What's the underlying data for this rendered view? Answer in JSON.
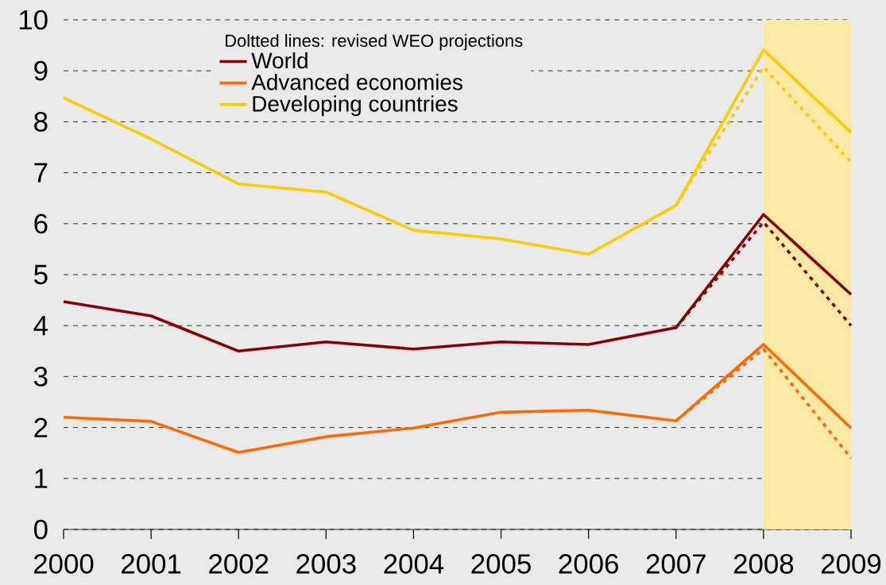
{
  "chart_data": {
    "type": "line",
    "x": [
      2000,
      2001,
      2002,
      2003,
      2004,
      2005,
      2006,
      2007,
      2008,
      2009
    ],
    "series": [
      {
        "name": "World",
        "color": "#8b0000",
        "values": [
          4.47,
          4.19,
          3.5,
          3.68,
          3.54,
          3.68,
          3.63,
          3.96,
          6.18,
          4.61
        ]
      },
      {
        "name": "Advanced economies",
        "color": "#ff6a00",
        "values": [
          2.2,
          2.12,
          1.51,
          1.82,
          1.99,
          2.3,
          2.34,
          2.13,
          3.63,
          1.99
        ]
      },
      {
        "name": "Developing countries",
        "color": "#ffcc00",
        "values": [
          8.47,
          7.66,
          6.78,
          6.62,
          5.87,
          5.7,
          5.4,
          6.36,
          9.41,
          7.79
        ]
      },
      {
        "color": "#8b0000",
        "line_style": "dotted",
        "x": [
          2007,
          2008,
          2009
        ],
        "values": [
          3.96,
          6.03,
          4.0
        ]
      },
      {
        "color": "#ff6a00",
        "line_style": "dotted",
        "x": [
          2007,
          2008,
          2009
        ],
        "values": [
          2.13,
          3.54,
          1.4
        ]
      },
      {
        "color": "#ffcc00",
        "line_style": "dotted",
        "x": [
          2007,
          2008,
          2009
        ],
        "values": [
          6.36,
          9.07,
          7.21
        ]
      }
    ],
    "legend_title": "Doltted lines: revised WEO projections",
    "legend": "top",
    "bands": [
      {
        "axis": "x",
        "from": 2008,
        "to": 2009,
        "color": "#fbe9a6"
      }
    ],
    "xlim": [
      2000,
      2009
    ],
    "xticks": [
      2000,
      2001,
      2002,
      2003,
      2004,
      2005,
      2006,
      2007,
      2008,
      2009
    ],
    "ylim": [
      0,
      10
    ],
    "yticks": [
      0,
      1,
      2,
      3,
      4,
      5,
      6,
      7,
      8,
      9,
      10
    ],
    "grid": "y"
  }
}
